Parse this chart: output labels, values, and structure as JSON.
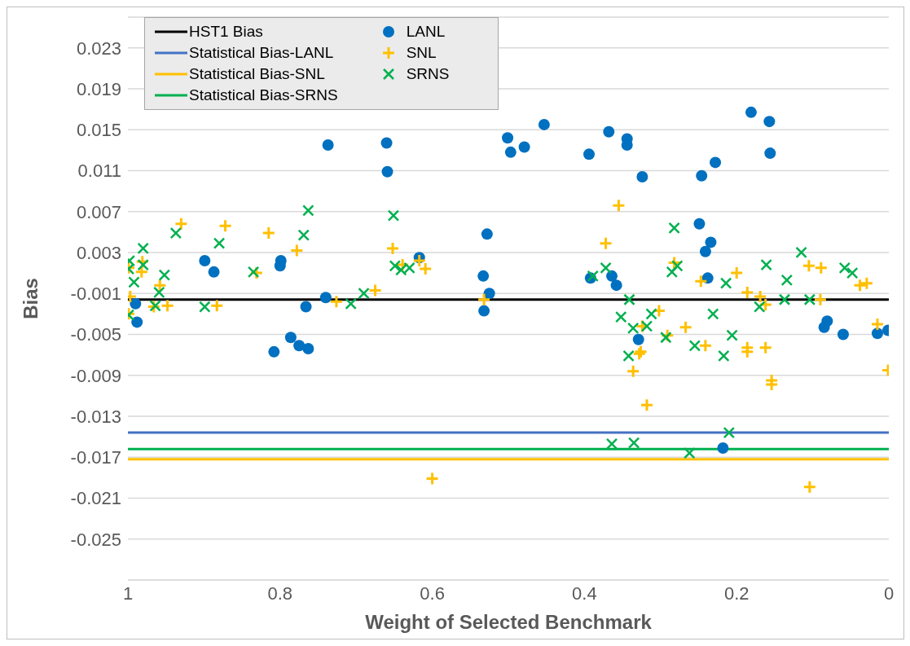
{
  "chart_data": {
    "type": "scatter",
    "xlabel": "Weight of Selected Benchmark",
    "ylabel": "Bias",
    "xlim": [
      1,
      0
    ],
    "xticks": [
      1,
      0.8,
      0.6,
      0.4,
      0.2,
      0
    ],
    "ylim": [
      -0.029,
      0.026
    ],
    "yticks": [
      -0.025,
      -0.021,
      -0.017,
      -0.013,
      -0.009,
      -0.005,
      -0.001,
      0.003,
      0.007,
      0.011,
      0.015,
      0.019,
      0.023
    ],
    "grid": "y",
    "legend": "top left",
    "series": [
      {
        "name": "HST1 Bias",
        "type": "line",
        "color": "#000000",
        "x": [
          1,
          0
        ],
        "values": [
          -0.0016,
          -0.0016
        ]
      },
      {
        "name": "Statistical Bias-LANL",
        "type": "line",
        "color": "#4472c4",
        "x": [
          1,
          0
        ],
        "values": [
          -0.0146,
          -0.0146
        ]
      },
      {
        "name": "Statistical Bias-SNL",
        "type": "line",
        "color": "#ffc000",
        "x": [
          1,
          0
        ],
        "values": [
          -0.0172,
          -0.0172
        ]
      },
      {
        "name": "Statistical Bias-SRNS",
        "type": "line",
        "color": "#00b050",
        "x": [
          1,
          0
        ],
        "values": [
          -0.0162,
          -0.0162
        ]
      },
      {
        "name": "LANL",
        "color": "#0070c0",
        "marker": "circle",
        "x": [
          0.99,
          0.988,
          0.899,
          0.887,
          0.799,
          0.8,
          0.737,
          0.74,
          0.766,
          0.786,
          0.775,
          0.763,
          0.808,
          0.66,
          0.659,
          0.617,
          0.501,
          0.497,
          0.479,
          0.453,
          0.528,
          0.533,
          0.525,
          0.532,
          0.394,
          0.368,
          0.344,
          0.344,
          0.324,
          0.392,
          0.364,
          0.358,
          0.329,
          0.181,
          0.157,
          0.156,
          0.246,
          0.228,
          0.249,
          0.234,
          0.241,
          0.238,
          0.081,
          0.085,
          0.06,
          0.015,
          0.001,
          0.218
        ],
        "values": [
          -0.002,
          -0.0038,
          0.0022,
          0.0011,
          0.0022,
          0.0017,
          0.0135,
          -0.0014,
          -0.0023,
          -0.0053,
          -0.0061,
          -0.0064,
          -0.0067,
          0.0137,
          0.0109,
          0.0025,
          0.0142,
          0.0128,
          0.0133,
          0.0155,
          0.0048,
          0.0007,
          -0.001,
          -0.0027,
          0.0126,
          0.0148,
          0.0141,
          0.0135,
          0.0104,
          0.0005,
          0.0007,
          -0.0002,
          -0.0055,
          0.0167,
          0.0158,
          0.0127,
          0.0105,
          0.0118,
          0.0058,
          0.004,
          0.0031,
          0.0005,
          -0.0037,
          -0.0043,
          -0.005,
          -0.0049,
          -0.0046,
          -0.0161
        ]
      },
      {
        "name": "SNL",
        "color": "#ffc000",
        "marker": "cross",
        "x": [
          0.93,
          0.872,
          0.815,
          0.778,
          0.831,
          0.675,
          0.726,
          0.883,
          0.948,
          0.966,
          0.958,
          0.997,
          0.999,
          0.999,
          0.982,
          0.981,
          0.652,
          0.639,
          0.617,
          0.609,
          0.532,
          0.355,
          0.372,
          0.282,
          0.247,
          0.2,
          0.186,
          0.169,
          0.162,
          0.105,
          0.089,
          0.09,
          0.038,
          0.029,
          0.015,
          0.302,
          0.324,
          0.326,
          0.291,
          0.267,
          0.241,
          0.186,
          0.186,
          0.162,
          0.328,
          0.336,
          0.318,
          0.154,
          0.154,
          0.001,
          0.104,
          0.6
        ],
        "values": [
          0.0058,
          0.0056,
          0.0049,
          0.0032,
          0.001,
          -0.0007,
          -0.0018,
          -0.0022,
          -0.0022,
          -0.0023,
          -0.0002,
          -0.0013,
          -0.003,
          0.0015,
          0.0011,
          0.0021,
          0.0034,
          0.0018,
          0.0022,
          0.0014,
          -0.0016,
          0.0076,
          0.0039,
          0.002,
          0.0002,
          0.001,
          -0.0009,
          -0.0013,
          -0.0021,
          0.0017,
          0.0015,
          -0.0016,
          -0.0002,
          0.0,
          -0.004,
          -0.0027,
          -0.0042,
          -0.0067,
          -0.0051,
          -0.0043,
          -0.0061,
          -0.0063,
          -0.0067,
          -0.0063,
          -0.0069,
          -0.0086,
          -0.0119,
          -0.0095,
          -0.0099,
          -0.0085,
          -0.0199,
          -0.0191
        ]
      },
      {
        "name": "SRNS",
        "color": "#00b050",
        "marker": "x",
        "x": [
          0.937,
          0.88,
          0.763,
          0.769,
          0.835,
          0.69,
          0.707,
          0.899,
          0.952,
          0.959,
          0.964,
          0.98,
          0.98,
          0.992,
          0.998,
          0.999,
          0.999,
          0.651,
          0.649,
          0.641,
          0.63,
          0.389,
          0.372,
          0.341,
          0.352,
          0.336,
          0.342,
          0.282,
          0.285,
          0.278,
          0.214,
          0.161,
          0.134,
          0.115,
          0.137,
          0.104,
          0.058,
          0.048,
          0.17,
          0.231,
          0.318,
          0.312,
          0.293,
          0.255,
          0.206,
          0.217,
          0.364,
          0.335,
          0.262,
          0.21
        ],
        "values": [
          0.0049,
          0.0039,
          0.0071,
          0.0047,
          0.0011,
          -0.001,
          -0.002,
          -0.0023,
          0.0008,
          -0.0009,
          -0.0022,
          0.0034,
          0.0018,
          0.0001,
          0.0022,
          0.0014,
          -0.0031,
          0.0066,
          0.0017,
          0.0013,
          0.0015,
          0.0007,
          0.0015,
          -0.0016,
          -0.0033,
          -0.0044,
          -0.0071,
          0.0054,
          0.0011,
          0.0017,
          0.0,
          0.0018,
          0.0003,
          0.003,
          -0.0016,
          -0.0016,
          0.0015,
          0.001,
          -0.0023,
          -0.003,
          -0.0042,
          -0.003,
          -0.0053,
          -0.0061,
          -0.0051,
          -0.0071,
          -0.0157,
          -0.0156,
          -0.0166,
          -0.0146
        ]
      }
    ]
  }
}
